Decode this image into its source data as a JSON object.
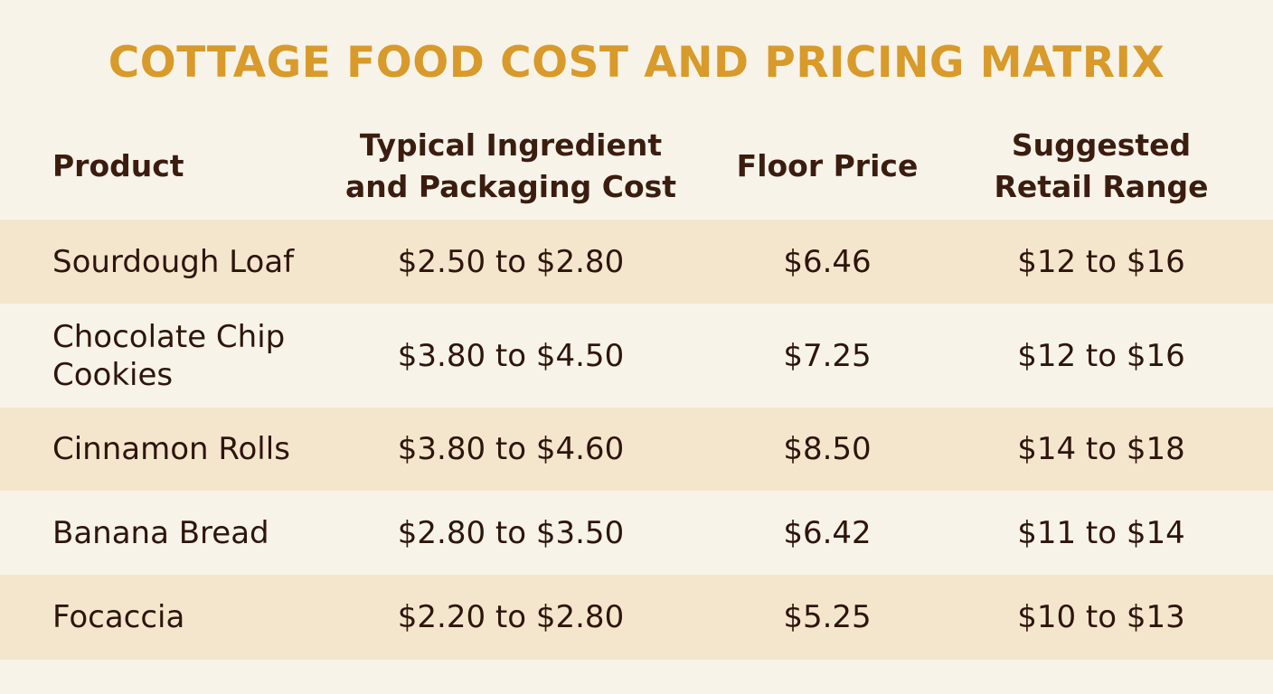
{
  "title": "COTTAGE FOOD COST AND PRICING MATRIX",
  "colors": {
    "title": "#d89a2a",
    "text": "#3b1d10",
    "background": "#f8f3e8",
    "shaded_row": "#f4e6cc"
  },
  "table": {
    "headers": {
      "product": "Product",
      "cost": "Typical Ingredient and Packaging Cost",
      "floor": "Floor Price",
      "retail": "Suggested Retail Range"
    },
    "rows": [
      {
        "product": "Sourdough Loaf",
        "cost": "$2.50 to $2.80",
        "floor": "$6.46",
        "retail": "$12 to $16"
      },
      {
        "product": "Chocolate Chip Cookies",
        "cost": "$3.80 to $4.50",
        "floor": "$7.25",
        "retail": "$12 to $16"
      },
      {
        "product": "Cinnamon Rolls",
        "cost": "$3.80 to $4.60",
        "floor": "$8.50",
        "retail": "$14 to $18"
      },
      {
        "product": "Banana Bread",
        "cost": "$2.80 to $3.50",
        "floor": "$6.42",
        "retail": "$11 to $14"
      },
      {
        "product": "Focaccia",
        "cost": "$2.20 to $2.80",
        "floor": "$5.25",
        "retail": "$10 to $13"
      }
    ]
  }
}
